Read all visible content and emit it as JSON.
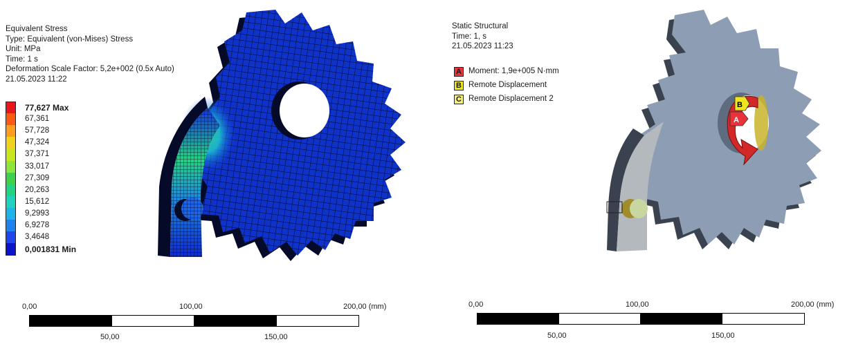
{
  "left": {
    "title": "Equivalent Stress",
    "type": "Type: Equivalent (von-Mises) Stress",
    "unit": "Unit: MPa",
    "time": "Time: 1 s",
    "scale_factor": "Deformation Scale Factor: 5,2e+002 (0.5x Auto)",
    "date": "21.05.2023 11:22",
    "legend": [
      {
        "label": "77,627 Max",
        "color": "#e8171e",
        "bold": true
      },
      {
        "label": "67,361",
        "color": "#ff5a14",
        "bold": false
      },
      {
        "label": "57,728",
        "color": "#ff9e1e",
        "bold": false
      },
      {
        "label": "47,324",
        "color": "#f0d21e",
        "bold": false
      },
      {
        "label": "37,371",
        "color": "#c8e61e",
        "bold": false
      },
      {
        "label": "33,017",
        "color": "#8ee63c",
        "bold": false
      },
      {
        "label": "27,309",
        "color": "#3cd24b",
        "bold": false
      },
      {
        "label": "20,263",
        "color": "#23d282",
        "bold": false
      },
      {
        "label": "15,612",
        "color": "#1ed2be",
        "bold": false
      },
      {
        "label": "9,2993",
        "color": "#1eb4eb",
        "bold": false
      },
      {
        "label": "6,9278",
        "color": "#1e82f0",
        "bold": false
      },
      {
        "label": "3,4648",
        "color": "#1e46eb",
        "bold": false
      },
      {
        "label": "0,001831 Min",
        "color": "#0a14c8",
        "bold": true
      }
    ],
    "scale": {
      "l0": "0,00",
      "l1": "50,00",
      "l2": "100,00",
      "l3": "150,00",
      "l4": "200,00 (mm)"
    }
  },
  "right": {
    "title": "Static Structural",
    "time": "Time: 1, s",
    "date": "21.05.2023 11:23",
    "bcs": [
      {
        "letter": "A",
        "label": "Moment: 1,9e+005 N·mm",
        "color": "#e8323c"
      },
      {
        "letter": "B",
        "label": "Remote Displacement",
        "color": "#f0e61e"
      },
      {
        "letter": "C",
        "label": "Remote Displacement 2",
        "color": "#f5f07a"
      }
    ],
    "scale": {
      "l0": "0,00",
      "l1": "50,00",
      "l2": "100,00",
      "l3": "150,00",
      "l4": "200,00 (mm)"
    }
  },
  "colors": {
    "mesh_blue": "#0f33c8",
    "mesh_side": "#050a28",
    "mesh_line": "#00051e",
    "model_grey": "#8c9db4",
    "model_grey_dark": "#5f6b7e",
    "moment_red": "#d22828"
  }
}
